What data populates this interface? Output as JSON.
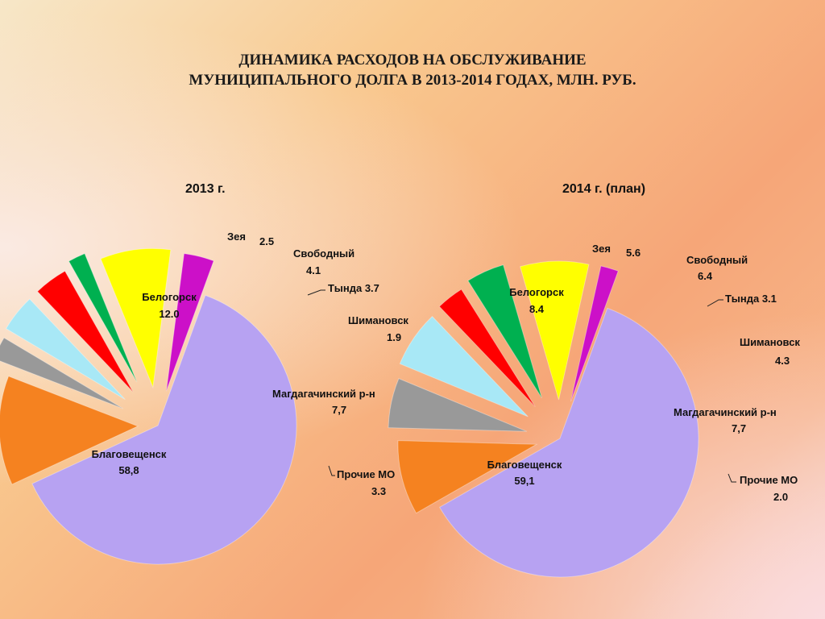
{
  "title_line1": "ДИНАМИКА РАСХОДОВ НА ОБСЛУЖИВАНИЕ",
  "title_line2": "МУНИЦИПАЛЬНОГО ДОЛГА В 2013-2014 ГОДАХ, МЛН. РУБ.",
  "colors": {
    "blagoveshchensk": "#b7a2f2",
    "belogorsk": "#f58220",
    "zeya": "#999999",
    "svobodny": "#a8e8f6",
    "tynda": "#ff0000",
    "shimanovsk": "#00b050",
    "magdagachinsky": "#ffff00",
    "other": "#cc10c8"
  },
  "chart_data": [
    {
      "type": "pie",
      "title": "2013 г.",
      "slices": [
        {
          "key": "blagoveshchensk",
          "name": "Благовещенск",
          "value": 58.8,
          "label": "58,8"
        },
        {
          "key": "belogorsk",
          "name": "Белогорск",
          "value": 12.0,
          "label": "12.0"
        },
        {
          "key": "zeya",
          "name": "Зея",
          "value": 2.5,
          "label": "2.5"
        },
        {
          "key": "svobodny",
          "name": "Свободный",
          "value": 4.1,
          "label": "4.1"
        },
        {
          "key": "tynda",
          "name": "Тында",
          "value": 3.7,
          "label": "3.7"
        },
        {
          "key": "shimanovsk",
          "name": "Шимановск",
          "value": 1.9,
          "label": "1.9"
        },
        {
          "key": "magdagachinsky",
          "name": "Магдагачинский р-н",
          "value": 7.7,
          "label": "7,7"
        },
        {
          "key": "other",
          "name": "Прочие МО",
          "value": 3.3,
          "label": "3.3"
        }
      ]
    },
    {
      "type": "pie",
      "title": "2014 г. (план)",
      "slices": [
        {
          "key": "blagoveshchensk",
          "name": "Благовещенск",
          "value": 59.1,
          "label": "59,1"
        },
        {
          "key": "belogorsk",
          "name": "Белогорск",
          "value": 8.4,
          "label": "8.4"
        },
        {
          "key": "zeya",
          "name": "Зея",
          "value": 5.6,
          "label": "5.6"
        },
        {
          "key": "svobodny",
          "name": "Свободный",
          "value": 6.4,
          "label": "6.4"
        },
        {
          "key": "tynda",
          "name": "Тында",
          "value": 3.1,
          "label": "3.1"
        },
        {
          "key": "shimanovsk",
          "name": "Шимановск",
          "value": 4.3,
          "label": "4.3"
        },
        {
          "key": "magdagachinsky",
          "name": "Магдагачинский р-н",
          "value": 7.7,
          "label": "7,7"
        },
        {
          "key": "other",
          "name": "Прочие МО",
          "value": 2.0,
          "label": "2.0"
        }
      ]
    }
  ]
}
